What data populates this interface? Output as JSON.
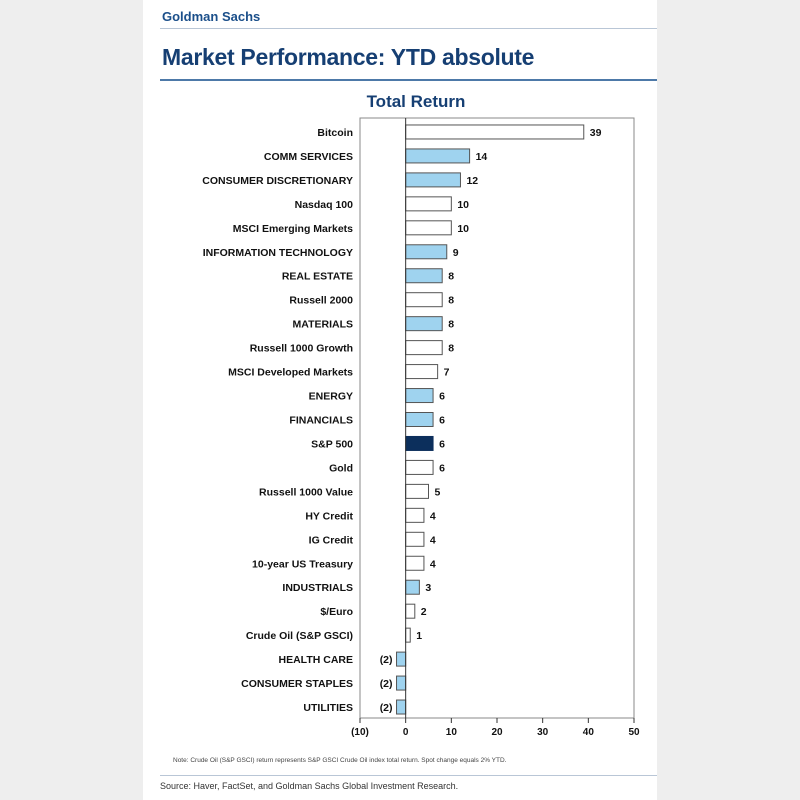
{
  "header": {
    "brand": "Goldman Sachs",
    "title": "Market Performance: YTD absolute"
  },
  "colors": {
    "sector": "#9fd3ef",
    "benchmark": "#ffffff",
    "sp500": "#0c2f5c",
    "bar_border": "#555555",
    "axis": "#333333"
  },
  "chart_data": {
    "type": "bar",
    "orientation": "horizontal",
    "title": "Total Return",
    "xlabel": "",
    "ylabel": "",
    "xlim": [
      -10,
      50
    ],
    "xticks": [
      -10,
      0,
      10,
      20,
      30,
      40,
      50
    ],
    "xtick_labels": [
      "(10)",
      "0",
      "10",
      "20",
      "30",
      "40",
      "50"
    ],
    "grid": false,
    "categories": [
      "Bitcoin",
      "COMM SERVICES",
      "CONSUMER DISCRETIONARY",
      "Nasdaq 100",
      "MSCI Emerging Markets",
      "INFORMATION TECHNOLOGY",
      "REAL ESTATE",
      "Russell 2000",
      "MATERIALS",
      "Russell 1000 Growth",
      "MSCI Developed Markets",
      "ENERGY",
      "FINANCIALS",
      "S&P 500",
      "Gold",
      "Russell 1000 Value",
      "HY Credit",
      "IG Credit",
      "10-year US Treasury",
      "INDUSTRIALS",
      "$/Euro",
      "Crude Oil (S&P GSCI)",
      "HEALTH CARE",
      "CONSUMER STAPLES",
      "UTILITIES"
    ],
    "values": [
      39,
      14,
      12,
      10,
      10,
      9,
      8,
      8,
      8,
      8,
      7,
      6,
      6,
      6,
      6,
      5,
      4,
      4,
      4,
      3,
      2,
      1,
      -2,
      -2,
      -2
    ],
    "value_labels": [
      "39",
      "14",
      "12",
      "10",
      "10",
      "9",
      "8",
      "8",
      "8",
      "8",
      "7",
      "6",
      "6",
      "6",
      "6",
      "5",
      "4",
      "4",
      "4",
      "3",
      "2",
      "1",
      "(2)",
      "(2)",
      "(2)"
    ],
    "bar_kind": [
      "benchmark",
      "sector",
      "sector",
      "benchmark",
      "benchmark",
      "sector",
      "sector",
      "benchmark",
      "sector",
      "benchmark",
      "benchmark",
      "sector",
      "sector",
      "sp500",
      "benchmark",
      "benchmark",
      "benchmark",
      "benchmark",
      "benchmark",
      "sector",
      "benchmark",
      "benchmark",
      "sector",
      "sector",
      "sector"
    ]
  },
  "footer": {
    "note": "Note: Crude Oil (S&P GSCI) return represents S&P GSCI Crude Oil index total return. Spot change equals 2% YTD.",
    "source": "Source: Haver, FactSet, and Goldman Sachs Global Investment Research."
  }
}
